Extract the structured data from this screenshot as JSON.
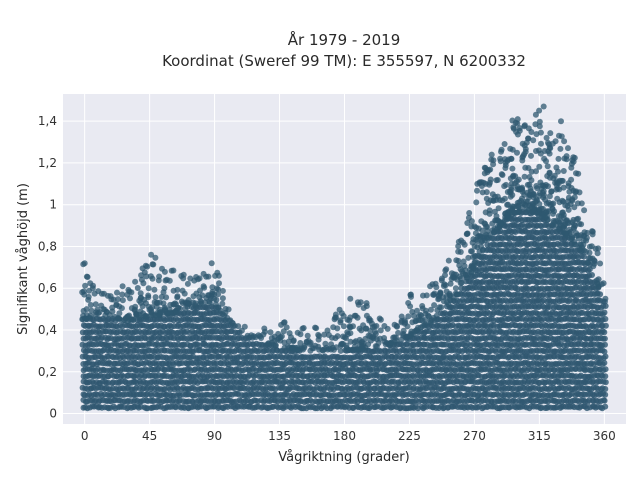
{
  "chart_data": {
    "type": "scatter",
    "title_line1": "År 1979 - 2019",
    "title_line2": "Koordinat (Sweref 99 TM): E 355597, N 6200332",
    "xlabel": "Vågriktning (grader)",
    "ylabel": "Signifikant våghöjd (m)",
    "xlim": [
      -15,
      375
    ],
    "ylim": [
      -0.05,
      1.53
    ],
    "x_ticks": [
      0,
      45,
      90,
      135,
      180,
      225,
      270,
      315,
      360
    ],
    "x_tick_labels": [
      "0",
      "45",
      "90",
      "135",
      "180",
      "225",
      "270",
      "315",
      "360"
    ],
    "y_ticks": [
      0,
      0.2,
      0.4,
      0.6,
      0.8,
      1.0,
      1.2,
      1.4
    ],
    "y_tick_labels": [
      "0",
      "0,2",
      "0,4",
      "0,6",
      "0,8",
      "1",
      "1,2",
      "1,4"
    ],
    "grid": true,
    "colors": {
      "marker": "#2f5870",
      "plot_bg": "#e9eaf2",
      "grid": "#ffffff"
    },
    "envelope": {
      "x": [
        0,
        10,
        20,
        30,
        40,
        50,
        60,
        70,
        80,
        90,
        100,
        110,
        120,
        135,
        150,
        165,
        180,
        195,
        210,
        225,
        240,
        255,
        265,
        275,
        285,
        295,
        305,
        315,
        325,
        335,
        345,
        355,
        360
      ],
      "dense_top": [
        0.45,
        0.48,
        0.46,
        0.44,
        0.46,
        0.47,
        0.48,
        0.5,
        0.52,
        0.53,
        0.44,
        0.38,
        0.35,
        0.32,
        0.3,
        0.3,
        0.3,
        0.31,
        0.33,
        0.37,
        0.44,
        0.55,
        0.65,
        0.78,
        0.88,
        0.95,
        0.98,
        0.95,
        0.9,
        0.85,
        0.78,
        0.62,
        0.55
      ],
      "outlier_max": [
        0.72,
        0.58,
        0.56,
        0.64,
        0.7,
        0.76,
        0.69,
        0.67,
        0.65,
        0.72,
        0.5,
        0.42,
        0.4,
        0.45,
        0.43,
        0.41,
        0.52,
        0.55,
        0.42,
        0.57,
        0.62,
        0.78,
        0.92,
        1.18,
        1.24,
        1.41,
        1.38,
        1.47,
        1.32,
        1.4,
        1.02,
        0.8,
        0.6
      ]
    },
    "notable_points": [
      {
        "x": 0,
        "y": 0.72
      },
      {
        "x": 46,
        "y": 0.76
      },
      {
        "x": 88,
        "y": 0.72
      },
      {
        "x": 93,
        "y": 0.66
      },
      {
        "x": 184,
        "y": 0.55
      },
      {
        "x": 226,
        "y": 0.57
      },
      {
        "x": 282,
        "y": 1.24
      },
      {
        "x": 297,
        "y": 1.37
      },
      {
        "x": 300,
        "y": 1.41
      },
      {
        "x": 305,
        "y": 1.38
      },
      {
        "x": 318,
        "y": 1.47
      },
      {
        "x": 330,
        "y": 1.4
      },
      {
        "x": 320,
        "y": 1.32
      },
      {
        "x": 340,
        "y": 1.06
      },
      {
        "x": 352,
        "y": 0.87
      }
    ]
  }
}
